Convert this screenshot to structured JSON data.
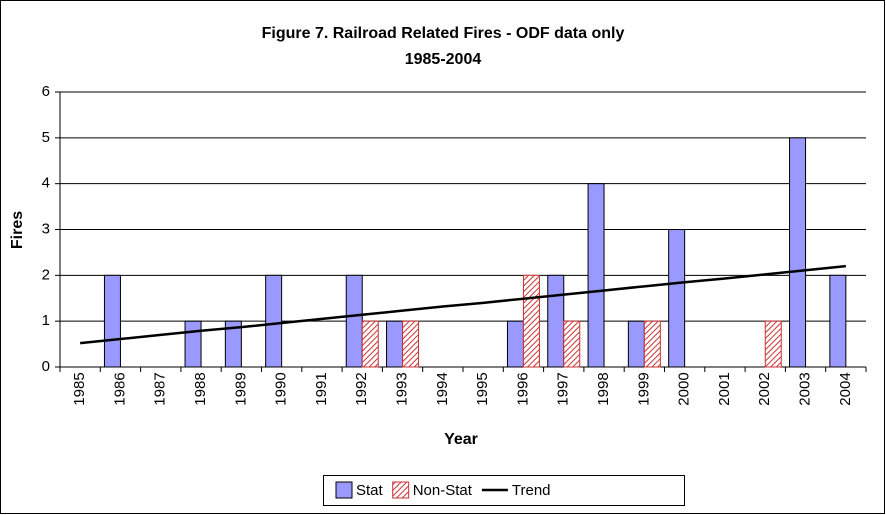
{
  "chart_data": {
    "type": "bar",
    "title": "Figure 7.  Railroad Related Fires - ODF data only",
    "subtitle": "1985-2004",
    "x_label": "Year",
    "y_label": "Fires",
    "categories": [
      "1985",
      "1986",
      "1987",
      "1988",
      "1989",
      "1990",
      "1991",
      "1992",
      "1993",
      "1994",
      "1995",
      "1996",
      "1997",
      "1998",
      "1999",
      "2000",
      "2001",
      "2002",
      "2003",
      "2004"
    ],
    "series": [
      {
        "name": "Stat",
        "color": "#9999ff",
        "values": [
          0,
          2,
          0,
          1,
          1,
          2,
          0,
          2,
          1,
          0,
          0,
          1,
          2,
          4,
          1,
          3,
          0,
          0,
          5,
          2
        ]
      },
      {
        "name": "Non-Stat",
        "color": "#cc3333",
        "pattern": "hatch",
        "values": [
          0,
          0,
          0,
          0,
          0,
          0,
          0,
          1,
          1,
          0,
          0,
          2,
          1,
          0,
          1,
          0,
          0,
          1,
          0,
          0
        ]
      },
      {
        "name": "Trend",
        "type": "line",
        "color": "#000000",
        "values": [
          0.52,
          0.61,
          0.7,
          0.79,
          0.87,
          0.96,
          1.05,
          1.14,
          1.23,
          1.32,
          1.4,
          1.49,
          1.58,
          1.67,
          1.76,
          1.85,
          1.93,
          2.02,
          2.11,
          2.2
        ]
      }
    ],
    "ylim": [
      0,
      6
    ],
    "yticks": [
      0,
      1,
      2,
      3,
      4,
      5,
      6
    ],
    "grid": true,
    "legend": "bottom"
  }
}
